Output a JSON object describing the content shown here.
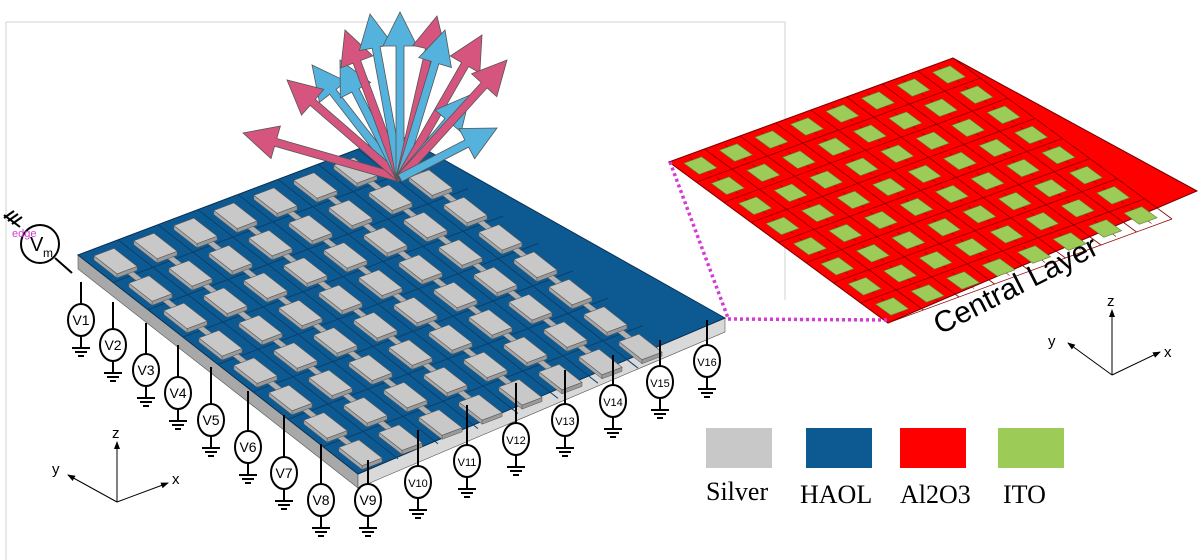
{
  "diagram": {
    "main_array": {
      "rows": 8,
      "cols": 8
    },
    "central_layer": {
      "label": "Central Layer",
      "rows": 8,
      "cols": 8
    },
    "voltage_sources": [
      "V1",
      "V2",
      "V3",
      "V4",
      "V5",
      "V6",
      "V7",
      "V8",
      "V9",
      "V10",
      "V11",
      "V12",
      "V13",
      "V14",
      "V15",
      "V16"
    ],
    "modulation_source": {
      "label": "V",
      "subscript": "m",
      "note": "edge"
    },
    "axes_left": {
      "z": "z",
      "y": "y",
      "x": "x"
    },
    "axes_right": {
      "z": "z",
      "y": "y",
      "x": "x"
    },
    "legend": [
      {
        "label": "Silver",
        "color": "#c8c8c8"
      },
      {
        "label": "HAOL",
        "color": "#0d5a93"
      },
      {
        "label": "Al2O3",
        "color": "#ff0000"
      },
      {
        "label": "ITO",
        "color": "#9ccb57"
      }
    ],
    "colors": {
      "haol_top": "#0d5a93",
      "haol_grid": "#0a3f6a",
      "silver_pad": "#c8c8c8",
      "silver_side": "#a8a8a8",
      "al2o3": "#ff0000",
      "al2o3_line": "#8b0000",
      "ito": "#9ccb57",
      "beam_pink": "#d6557f",
      "beam_blue": "#55b2dc",
      "dotted_link": "#d63ad6"
    }
  }
}
